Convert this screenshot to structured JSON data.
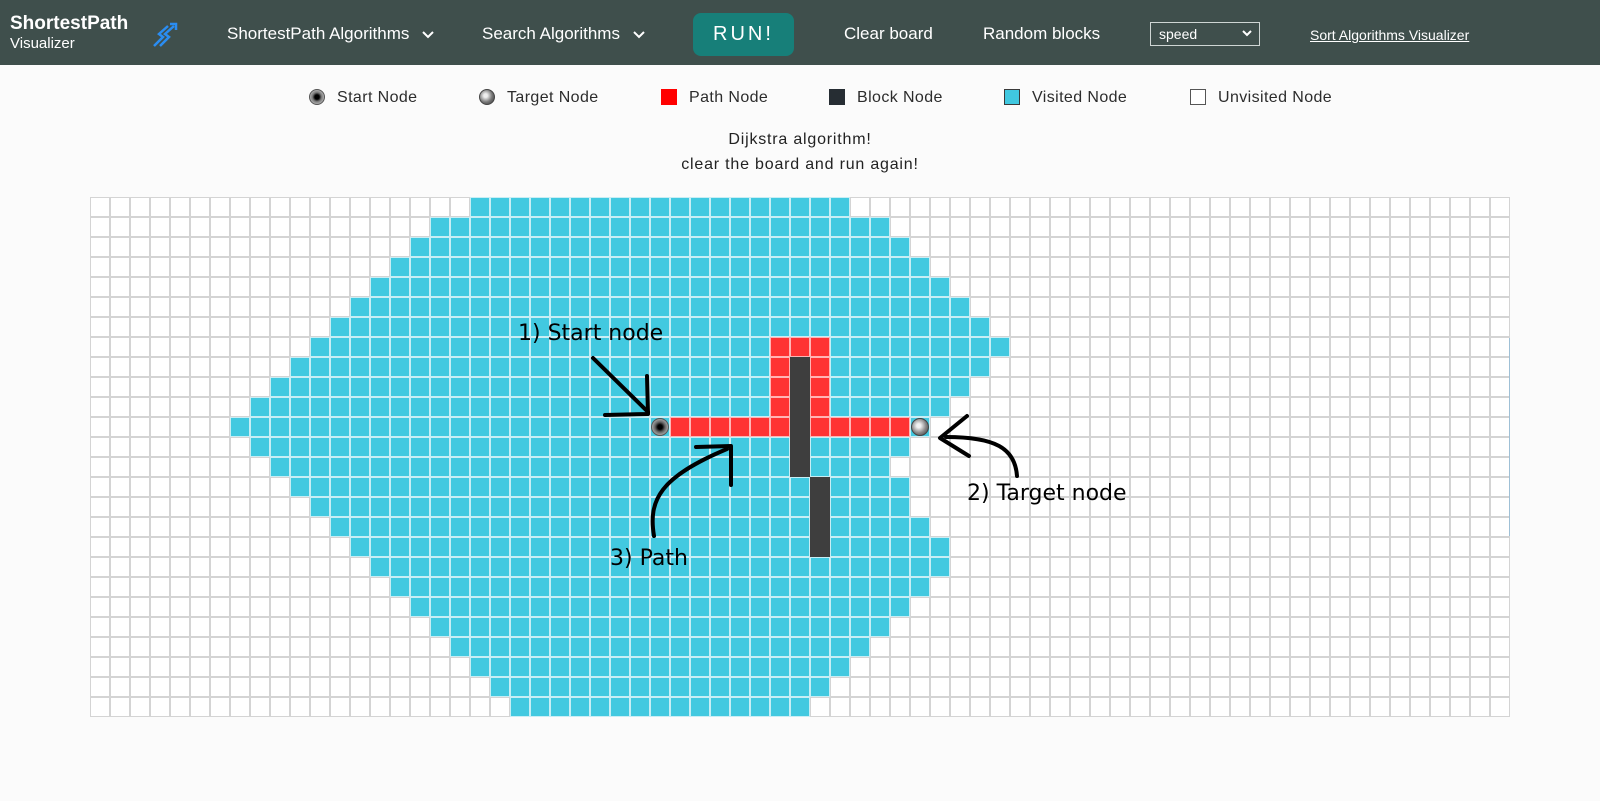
{
  "navbar": {
    "brand_title": "ShortestPath",
    "brand_subtitle": "Visualizer",
    "brand_icon": "route-arrows-icon",
    "menu_shortest": "ShortestPath Algorithms",
    "menu_search": "Search Algorithms",
    "run_label": "RUN!",
    "clear_label": "Clear board",
    "random_label": "Random blocks",
    "speed_value": "speed",
    "sort_link": "Sort Algorithms Visualizer"
  },
  "legend": {
    "start": "Start Node",
    "target": "Target Node",
    "path": "Path Node",
    "block": "Block Node",
    "visited": "Visited Node",
    "unvisited": "Unvisited Node"
  },
  "message": {
    "line1": "Dijkstra algorithm!",
    "line2": "clear the board and run again!"
  },
  "annotations": {
    "start": "1) Start node",
    "target": "2) Target node",
    "path": "3) Path"
  },
  "colors": {
    "navbar": "#3f4f4c",
    "run_button": "#177f79",
    "visited": "#42c9e0",
    "path": "#ff3333",
    "block": "#3e3e3e",
    "unvisited": "#ffffff"
  },
  "grid": {
    "cols": 71,
    "rows": 26,
    "start": [
      11,
      28
    ],
    "target": [
      11,
      41
    ],
    "visited_rows": [
      [
        19,
        37
      ],
      [
        17,
        39
      ],
      [
        16,
        40
      ],
      [
        15,
        41
      ],
      [
        14,
        42
      ],
      [
        13,
        43
      ],
      [
        12,
        44
      ],
      [
        11,
        45
      ],
      [
        10,
        44
      ],
      [
        9,
        43
      ],
      [
        8,
        42
      ],
      [
        7,
        41
      ],
      [
        8,
        40
      ],
      [
        9,
        39
      ],
      [
        10,
        40
      ],
      [
        11,
        40
      ],
      [
        12,
        41
      ],
      [
        13,
        42
      ],
      [
        14,
        42
      ],
      [
        15,
        41
      ],
      [
        16,
        40
      ],
      [
        17,
        39
      ],
      [
        18,
        38
      ],
      [
        19,
        37
      ],
      [
        20,
        36
      ],
      [
        21,
        35
      ]
    ],
    "path_cells": [
      [
        7,
        34
      ],
      [
        7,
        35
      ],
      [
        7,
        36
      ],
      [
        8,
        34
      ],
      [
        8,
        36
      ],
      [
        9,
        34
      ],
      [
        9,
        36
      ],
      [
        10,
        34
      ],
      [
        10,
        36
      ],
      [
        11,
        29
      ],
      [
        11,
        30
      ],
      [
        11,
        31
      ],
      [
        11,
        32
      ],
      [
        11,
        33
      ],
      [
        11,
        34
      ],
      [
        11,
        36
      ],
      [
        11,
        37
      ],
      [
        11,
        38
      ],
      [
        11,
        39
      ],
      [
        11,
        40
      ]
    ],
    "block_cells": [
      [
        8,
        35
      ],
      [
        9,
        35
      ],
      [
        10,
        35
      ],
      [
        11,
        35
      ],
      [
        12,
        35
      ],
      [
        13,
        35
      ],
      [
        14,
        36
      ],
      [
        15,
        36
      ],
      [
        16,
        36
      ],
      [
        17,
        36
      ]
    ]
  }
}
